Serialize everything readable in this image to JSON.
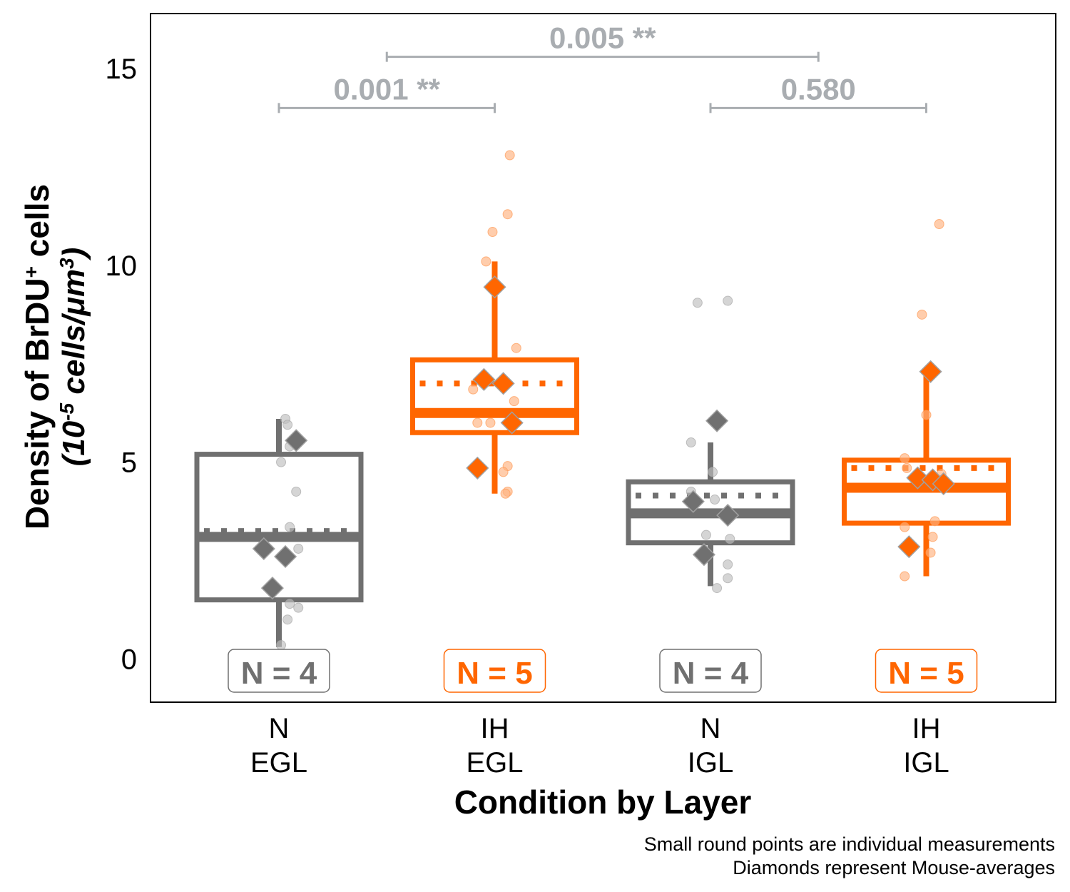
{
  "chart_data": {
    "type": "box",
    "xlabel": "Condition by Layer",
    "ylabel": {
      "line1_main": "Density of BrDU",
      "line1_sup": "+",
      "line1_rest": " cells",
      "line2_pre": "(10",
      "line2_sup1": "-5",
      "line2_mid": " cells/μm",
      "line2_sup2": "3",
      "line2_post": ")"
    },
    "ylim": [
      -1.1,
      16.4
    ],
    "yticks": [
      0,
      5,
      10,
      15
    ],
    "grid": false,
    "categories": [
      {
        "label_top": "N",
        "label_bottom": "EGL",
        "group": "N",
        "color": "#707070",
        "n_label": "N = 4",
        "box": {
          "q1": 1.5,
          "median": 3.1,
          "q3": 5.2,
          "whisker_low": 0.3,
          "whisker_high": 6.1,
          "mean": 3.25
        },
        "points": [
          [
            0.03,
            6.1
          ],
          [
            0.04,
            5.95
          ],
          [
            0.05,
            5.4
          ],
          [
            0.01,
            5.0
          ],
          [
            0.08,
            4.25
          ],
          [
            0.05,
            3.35
          ],
          [
            0.09,
            2.8
          ],
          [
            0.05,
            1.4
          ],
          [
            0.04,
            1.0
          ],
          [
            0.09,
            1.3
          ],
          [
            0.01,
            0.35
          ]
        ],
        "diamonds": [
          [
            -0.07,
            2.8
          ],
          [
            0.03,
            2.6
          ],
          [
            -0.03,
            1.8
          ],
          [
            0.08,
            5.55
          ]
        ]
      },
      {
        "label_top": "IH",
        "label_bottom": "EGL",
        "group": "IH",
        "color": "#FF6600",
        "n_label": "N = 5",
        "box": {
          "q1": 5.75,
          "median": 6.25,
          "q3": 7.6,
          "whisker_low": 4.2,
          "whisker_high": 10.1,
          "mean": 7.0
        },
        "points": [
          [
            0.07,
            12.8
          ],
          [
            0.06,
            11.3
          ],
          [
            -0.01,
            10.85
          ],
          [
            -0.04,
            10.1
          ],
          [
            0.1,
            7.9
          ],
          [
            -0.1,
            6.85
          ],
          [
            0.09,
            6.55
          ],
          [
            -0.08,
            6.0
          ],
          [
            -0.02,
            6.0
          ],
          [
            0.06,
            4.9
          ],
          [
            0.04,
            4.75
          ],
          [
            0.06,
            4.25
          ],
          [
            0.05,
            4.2
          ]
        ],
        "diamonds": [
          [
            0,
            9.45
          ],
          [
            -0.05,
            7.1
          ],
          [
            0.04,
            7.0
          ],
          [
            0.08,
            6.0
          ],
          [
            -0.08,
            4.85
          ]
        ]
      },
      {
        "label_top": "N",
        "label_bottom": "IGL",
        "group": "N",
        "color": "#707070",
        "n_label": "N = 4",
        "box": {
          "q1": 2.95,
          "median": 3.7,
          "q3": 4.5,
          "whisker_low": 1.85,
          "whisker_high": 5.5,
          "mean": 4.15
        },
        "points": [
          [
            -0.06,
            9.05
          ],
          [
            0.08,
            9.1
          ],
          [
            -0.09,
            5.5
          ],
          [
            0.01,
            4.75
          ],
          [
            -0.09,
            4.25
          ],
          [
            0.02,
            4.05
          ],
          [
            -0.02,
            3.15
          ],
          [
            0.09,
            3.05
          ],
          [
            0.08,
            2.4
          ],
          [
            0.08,
            2.05
          ],
          [
            0.03,
            1.8
          ]
        ],
        "diamonds": [
          [
            0.03,
            6.05
          ],
          [
            -0.08,
            4.0
          ],
          [
            0.08,
            3.65
          ],
          [
            -0.03,
            2.65
          ]
        ]
      },
      {
        "label_top": "IH",
        "label_bottom": "IGL",
        "group": "IH",
        "color": "#FF6600",
        "n_label": "N = 5",
        "box": {
          "q1": 3.45,
          "median": 4.35,
          "q3": 5.05,
          "whisker_low": 2.1,
          "whisker_high": 7.3,
          "mean": 4.85
        },
        "points": [
          [
            0.06,
            11.05
          ],
          [
            -0.02,
            8.75
          ],
          [
            0,
            6.2
          ],
          [
            -0.1,
            5.1
          ],
          [
            -0.09,
            4.85
          ],
          [
            0.07,
            4.7
          ],
          [
            0.02,
            4.55
          ],
          [
            -0.1,
            3.35
          ],
          [
            0.04,
            3.5
          ],
          [
            0.03,
            3.1
          ],
          [
            0.02,
            2.7
          ],
          [
            -0.1,
            2.1
          ]
        ],
        "diamonds": [
          [
            0.02,
            7.3
          ],
          [
            -0.04,
            4.6
          ],
          [
            0.03,
            4.55
          ],
          [
            0.08,
            4.45
          ],
          [
            -0.08,
            2.85
          ]
        ]
      }
    ],
    "comparisons": [
      {
        "from": 0,
        "to": 1,
        "y": 14.0,
        "label": "0.001 **"
      },
      {
        "from": 0.5,
        "to": 2.5,
        "y": 15.3,
        "label": "0.005 **"
      },
      {
        "from": 2,
        "to": 3,
        "y": 14.0,
        "label": "0.580"
      }
    ],
    "caption_lines": [
      "Small round points are individual measurements",
      "Diamonds represent Mouse-averages"
    ],
    "colors": {
      "N": "#707070",
      "IH": "#FF6600",
      "comparison": "#A9ADB1"
    }
  }
}
